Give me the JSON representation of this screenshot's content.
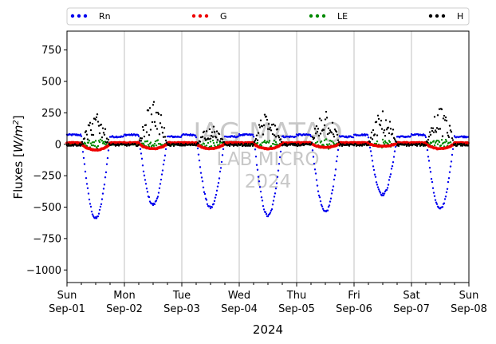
{
  "chart_data": {
    "type": "scatter",
    "title": "",
    "xlabel": "2024",
    "ylabel": "Fluxes [W/m²]",
    "ylim": [
      -1100,
      900
    ],
    "yticks": [
      -1000,
      -750,
      -500,
      -250,
      0,
      250,
      500,
      750
    ],
    "xlim_days": [
      0,
      7
    ],
    "xticks": [
      {
        "weekday": "Sun",
        "date": "Sep-01"
      },
      {
        "weekday": "Mon",
        "date": "Sep-02"
      },
      {
        "weekday": "Tue",
        "date": "Sep-03"
      },
      {
        "weekday": "Wed",
        "date": "Sep-04"
      },
      {
        "weekday": "Thu",
        "date": "Sep-05"
      },
      {
        "weekday": "Fri",
        "date": "Sep-06"
      },
      {
        "weekday": "Sat",
        "date": "Sep-07"
      },
      {
        "weekday": "Sun",
        "date": "Sep-08"
      }
    ],
    "grid": "vertical only",
    "legend_position": "top, above plot, 4 columns",
    "series": [
      {
        "name": "Rn",
        "color": "#0000ee",
        "night_value": 60,
        "daily_minimum": [
          -590,
          -480,
          -505,
          -570,
          -540,
          -400,
          -515
        ]
      },
      {
        "name": "G",
        "color": "#ee0000",
        "night_value": 12,
        "daily_minimum": [
          -45,
          -35,
          -35,
          -35,
          -25,
          -15,
          -35
        ]
      },
      {
        "name": "LE",
        "color": "#008800",
        "night_value": 0,
        "daily_minimum": [
          -40,
          -30,
          -40,
          -40,
          -45,
          -25,
          -30
        ]
      },
      {
        "name": "H",
        "color": "#000000",
        "night_value": -5,
        "daily_maximum": [
          240,
          370,
          150,
          280,
          300,
          260,
          290
        ]
      }
    ]
  },
  "watermark": {
    "line1": "IAG MATAO",
    "line2": "LAB MICRO",
    "line3": "2024"
  }
}
